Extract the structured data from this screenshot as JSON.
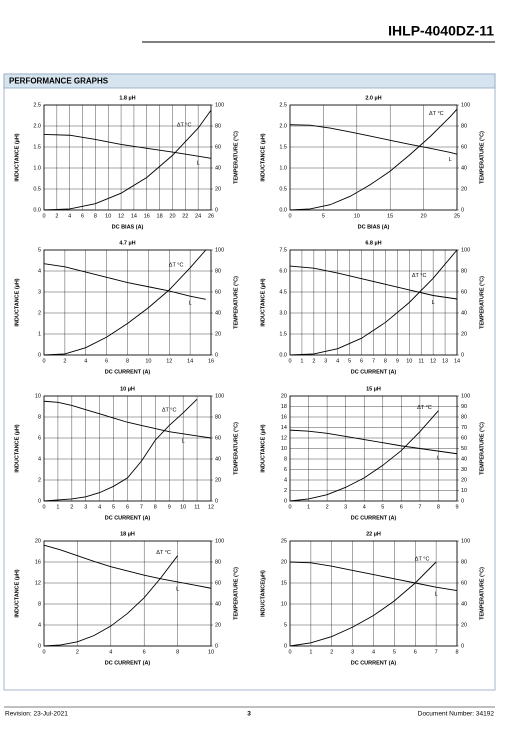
{
  "header": {
    "title": "IHLP-4040DZ-11"
  },
  "section": {
    "title": "PERFORMANCE GRAPHS"
  },
  "footer": {
    "revision": "Revision: 23-Jul-2021",
    "page": "3",
    "document_number": "Document Number: 34192"
  },
  "chart_data": [
    {
      "type": "line",
      "title": "1.8 µH",
      "x_label": "DC BIAS (A)",
      "y_label": "INDUCTANCE (µH)",
      "y2_label": "TEMPERATURE (°C)",
      "grid": true,
      "x": [
        0,
        4,
        8,
        12,
        16,
        20,
        24,
        26
      ],
      "series": [
        {
          "name": "L",
          "color": "#000000",
          "values": [
            1.8,
            1.78,
            1.68,
            1.56,
            1.47,
            1.38,
            1.28,
            1.23
          ]
        },
        {
          "name": "ΔT °C",
          "color": "#000000",
          "axis": "y2",
          "values": [
            0,
            1,
            6,
            16,
            31,
            52,
            78,
            95
          ]
        }
      ],
      "xlim": [
        0,
        26
      ],
      "xticks": [
        0,
        2,
        4,
        6,
        8,
        10,
        12,
        14,
        16,
        18,
        20,
        22,
        24,
        26
      ],
      "ylim": [
        0,
        2.5
      ],
      "yticks": [
        {
          "value": 0,
          "label": "0.0"
        },
        0.5,
        {
          "value": 1,
          "label": "1.0"
        },
        1.5,
        {
          "value": 2,
          "label": "2.0"
        },
        2.5
      ],
      "y2lim": [
        0,
        100
      ],
      "y2ticks": [
        0,
        20,
        40,
        60,
        80,
        100
      ]
    },
    {
      "type": "line",
      "title": "2.0 µH",
      "x_label": "DC BIAS (A)",
      "y_label": "INDUCTANCE (µH)",
      "y2_label": "TEMPERATURE (°C)",
      "grid": true,
      "x": [
        0,
        3,
        6,
        9,
        12,
        15,
        18,
        21,
        24,
        25
      ],
      "series": [
        {
          "name": "L",
          "color": "#000000",
          "values": [
            2.03,
            2.02,
            1.95,
            1.86,
            1.76,
            1.66,
            1.56,
            1.47,
            1.37,
            1.33
          ]
        },
        {
          "name": "ΔT °C",
          "color": "#000000",
          "axis": "y2",
          "values": [
            0,
            1,
            5,
            13,
            24,
            37,
            53,
            70,
            89,
            96
          ]
        }
      ],
      "xlim": [
        0,
        25
      ],
      "xticks": [
        0,
        5,
        10,
        15,
        20,
        25
      ],
      "ylim": [
        0,
        2.5
      ],
      "yticks": [
        {
          "value": 0,
          "label": "0.0"
        },
        0.5,
        {
          "value": 1,
          "label": "1.0"
        },
        1.5,
        {
          "value": 2,
          "label": "2.0"
        },
        2.5
      ],
      "y2lim": [
        0,
        100
      ],
      "y2ticks": [
        0,
        20,
        40,
        60,
        80,
        100
      ]
    },
    {
      "type": "line",
      "title": "4.7 µH",
      "x_label": "DC CURRENT (A)",
      "y_label": "INDUCTANCE (µH)",
      "y2_label": "TEMPERATURE (°C)",
      "grid": true,
      "x": [
        0,
        2,
        4,
        6,
        8,
        10,
        12,
        14,
        15.5
      ],
      "series": [
        {
          "name": "L",
          "color": "#000000",
          "values": [
            4.35,
            4.2,
            3.95,
            3.7,
            3.45,
            3.25,
            3.05,
            2.8,
            2.65
          ]
        },
        {
          "name": "ΔT °C",
          "color": "#000000",
          "axis": "y2",
          "values": [
            0,
            1,
            7,
            17,
            30,
            45,
            62,
            83,
            100
          ]
        }
      ],
      "xlim": [
        0,
        16
      ],
      "xticks": [
        0,
        2,
        4,
        6,
        8,
        10,
        12,
        14,
        16
      ],
      "ylim": [
        0,
        5
      ],
      "yticks": [
        0,
        1,
        2,
        3,
        4,
        5
      ],
      "y2lim": [
        0,
        100
      ],
      "y2ticks": [
        0,
        20,
        40,
        60,
        80,
        100
      ]
    },
    {
      "type": "line",
      "title": "6.8 µH",
      "x_label": "DC CURRENT (A)",
      "y_label": "INDUCTANCE (µH)",
      "y2_label": "TEMPERATURE (°C)",
      "grid": true,
      "x": [
        0,
        2,
        4,
        6,
        8,
        10,
        12,
        14
      ],
      "series": [
        {
          "name": "L",
          "color": "#000000",
          "values": [
            6.35,
            6.2,
            5.85,
            5.45,
            5.05,
            4.65,
            4.25,
            4.0
          ]
        },
        {
          "name": "ΔT °C",
          "color": "#000000",
          "axis": "y2",
          "values": [
            0,
            1,
            6,
            16,
            31,
            50,
            73,
            100
          ]
        }
      ],
      "xlim": [
        0,
        14
      ],
      "xticks": [
        0,
        1,
        2,
        3,
        4,
        5,
        6,
        7,
        8,
        9,
        10,
        11,
        12,
        13,
        14
      ],
      "ylim": [
        0,
        7.5
      ],
      "yticks": [
        {
          "value": 0,
          "label": "0.0"
        },
        1.5,
        {
          "value": 3,
          "label": "3.0"
        },
        4.5,
        {
          "value": 6,
          "label": "6.0"
        },
        7.5
      ],
      "y2lim": [
        0,
        100
      ],
      "y2ticks": [
        0,
        20,
        40,
        60,
        80,
        100
      ]
    },
    {
      "type": "line",
      "title": "10 µH",
      "x_label": "DC CURRENT (A)",
      "y_label": "INDUCTANCE (µH)",
      "y2_label": "TEMPERATURE (°C)",
      "grid": true,
      "x": [
        0,
        1,
        2,
        3,
        4,
        5,
        6,
        7,
        8,
        9,
        10,
        11,
        12
      ],
      "series": [
        {
          "name": "L",
          "color": "#000000",
          "values": [
            9.5,
            9.4,
            9.1,
            8.7,
            8.3,
            7.9,
            7.5,
            7.2,
            6.9,
            6.6,
            6.4,
            6.2,
            6.0
          ]
        },
        {
          "name": "ΔT °C",
          "color": "#000000",
          "axis": "y2",
          "values": [
            0,
            1,
            2,
            4,
            8,
            14,
            22,
            38,
            58,
            72,
            84,
            97,
            null
          ]
        }
      ],
      "xlim": [
        0,
        12
      ],
      "xticks": [
        0,
        1,
        2,
        3,
        4,
        5,
        6,
        7,
        8,
        9,
        10,
        11,
        12
      ],
      "ylim": [
        0,
        10
      ],
      "yticks": [
        0,
        2,
        4,
        6,
        8,
        10
      ],
      "y2lim": [
        0,
        100
      ],
      "y2ticks": [
        0,
        20,
        40,
        60,
        80,
        100
      ]
    },
    {
      "type": "line",
      "title": "15 µH",
      "x_label": "DC CURRENT (A)",
      "y_label": "INDUCTANCE (µH)",
      "y2_label": "TEMPERATURE (°C)",
      "grid": true,
      "x": [
        0,
        1,
        2,
        3,
        4,
        5,
        6,
        7,
        8,
        9
      ],
      "series": [
        {
          "name": "L",
          "color": "#000000",
          "values": [
            13.5,
            13.3,
            12.9,
            12.3,
            11.7,
            11.1,
            10.5,
            10,
            9.5,
            9.0
          ]
        },
        {
          "name": "ΔT °C",
          "color": "#000000",
          "axis": "y2",
          "values": [
            0,
            2,
            6,
            13,
            22,
            34,
            48,
            66,
            86,
            null
          ]
        }
      ],
      "xlim": [
        0,
        9
      ],
      "xticks": [
        0,
        1,
        2,
        3,
        4,
        5,
        6,
        7,
        8,
        9
      ],
      "ylim": [
        0,
        20
      ],
      "yticks": [
        0,
        2,
        4,
        6,
        8,
        10,
        12,
        14,
        16,
        18,
        20
      ],
      "y2lim": [
        0,
        100
      ],
      "y2ticks": [
        0,
        10,
        20,
        30,
        40,
        50,
        60,
        70,
        80,
        90,
        100
      ]
    },
    {
      "type": "line",
      "title": "18 µH",
      "x_label": "DC CURRENT (A)",
      "y_label": "INDUCTANCE (µH)",
      "y2_label": "TEMPERATURE (°C)",
      "grid": true,
      "x": [
        0,
        1,
        2,
        3,
        4,
        5,
        6,
        7,
        8,
        9,
        10
      ],
      "series": [
        {
          "name": "L",
          "color": "#000000",
          "values": [
            19.2,
            18.3,
            17.2,
            16.1,
            15.1,
            14.3,
            13.5,
            12.8,
            12.2,
            11.6,
            11.0
          ]
        },
        {
          "name": "ΔT °C",
          "color": "#000000",
          "axis": "y2",
          "values": [
            0,
            1,
            4,
            10,
            19,
            31,
            46,
            65,
            86,
            null,
            null
          ]
        }
      ],
      "xlim": [
        0,
        10
      ],
      "xticks": [
        0,
        2,
        4,
        6,
        8,
        10
      ],
      "ylim": [
        0,
        20
      ],
      "yticks": [
        0,
        4,
        8,
        12,
        16,
        20
      ],
      "y2lim": [
        0,
        100
      ],
      "y2ticks": [
        0,
        20,
        40,
        60,
        80,
        100
      ]
    },
    {
      "type": "line",
      "title": "22 µH",
      "x_label": "DC CURRENT (A)",
      "y_label": "INDUCTANCE(µH)",
      "y2_label": "TEMPERATURE (°C)",
      "grid": true,
      "x": [
        0,
        1,
        2,
        3,
        4,
        5,
        6,
        7,
        8
      ],
      "series": [
        {
          "name": "L",
          "color": "#000000",
          "values": [
            20,
            19.8,
            19,
            18,
            17,
            16,
            15,
            14,
            13.2
          ]
        },
        {
          "name": "ΔT °C",
          "color": "#000000",
          "axis": "y2",
          "values": [
            0,
            3,
            9,
            18,
            29,
            43,
            60,
            80,
            null
          ]
        }
      ],
      "xlim": [
        0,
        8
      ],
      "xticks": [
        0,
        1,
        2,
        3,
        4,
        5,
        6,
        7,
        8
      ],
      "ylim": [
        0,
        25
      ],
      "yticks": [
        0,
        5,
        10,
        15,
        20,
        25
      ],
      "y2lim": [
        0,
        100
      ],
      "y2ticks": [
        0,
        20,
        40,
        60,
        80,
        100
      ]
    }
  ]
}
